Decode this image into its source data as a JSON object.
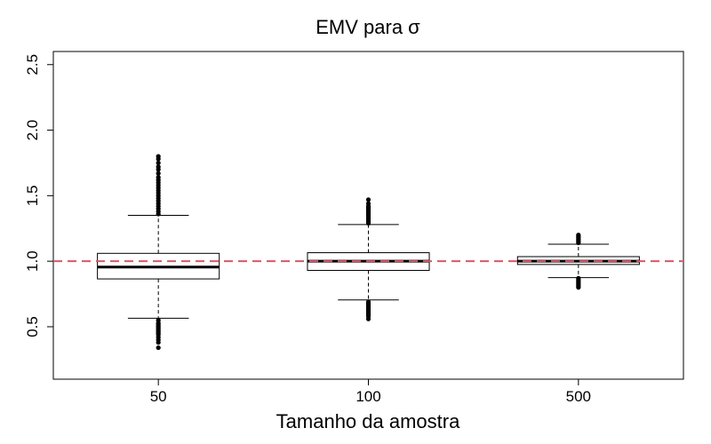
{
  "chart_data": {
    "type": "boxplot",
    "title": "EMV para σ",
    "xlabel": "Tamanho da amostra",
    "ylabel": "",
    "ylim": [
      0.1,
      2.6
    ],
    "yticks": [
      0.5,
      1.0,
      1.5,
      2.0,
      2.5
    ],
    "ytick_labels": [
      "0.5",
      "1.0",
      "1.5",
      "2.0",
      "2.5"
    ],
    "reference_line": {
      "value": 1.0,
      "color": "#df536b",
      "style": "dashed"
    },
    "categories": [
      "50",
      "100",
      "500"
    ],
    "boxes": [
      {
        "name": "50",
        "whisker_low": 0.565,
        "q1": 0.865,
        "median": 0.955,
        "q3": 1.06,
        "whisker_high": 1.35,
        "outliers_low": [
          0.55,
          0.53,
          0.52,
          0.51,
          0.5,
          0.49,
          0.48,
          0.47,
          0.46,
          0.45,
          0.44,
          0.42,
          0.4,
          0.38,
          0.34
        ],
        "outliers_high": [
          1.36,
          1.38,
          1.4,
          1.42,
          1.44,
          1.46,
          1.48,
          1.5,
          1.52,
          1.54,
          1.56,
          1.58,
          1.6,
          1.62,
          1.64,
          1.67,
          1.7,
          1.72,
          1.75,
          1.78,
          1.8
        ]
      },
      {
        "name": "100",
        "whisker_low": 0.705,
        "q1": 0.93,
        "median": 1.0,
        "q3": 1.065,
        "whisker_high": 1.28,
        "outliers_low": [
          0.69,
          0.68,
          0.67,
          0.66,
          0.65,
          0.64,
          0.63,
          0.62,
          0.61,
          0.6,
          0.59,
          0.58,
          0.56
        ],
        "outliers_high": [
          1.29,
          1.3,
          1.31,
          1.32,
          1.33,
          1.34,
          1.35,
          1.36,
          1.37,
          1.38,
          1.39,
          1.4,
          1.41,
          1.42,
          1.44,
          1.47
        ]
      },
      {
        "name": "500",
        "whisker_low": 0.875,
        "q1": 0.975,
        "median": 1.0,
        "q3": 1.035,
        "whisker_high": 1.13,
        "outliers_low": [
          0.87,
          0.86,
          0.85,
          0.84,
          0.83,
          0.82,
          0.81,
          0.8
        ],
        "outliers_high": [
          1.14,
          1.15,
          1.16,
          1.17,
          1.18,
          1.19,
          1.2
        ]
      }
    ]
  }
}
